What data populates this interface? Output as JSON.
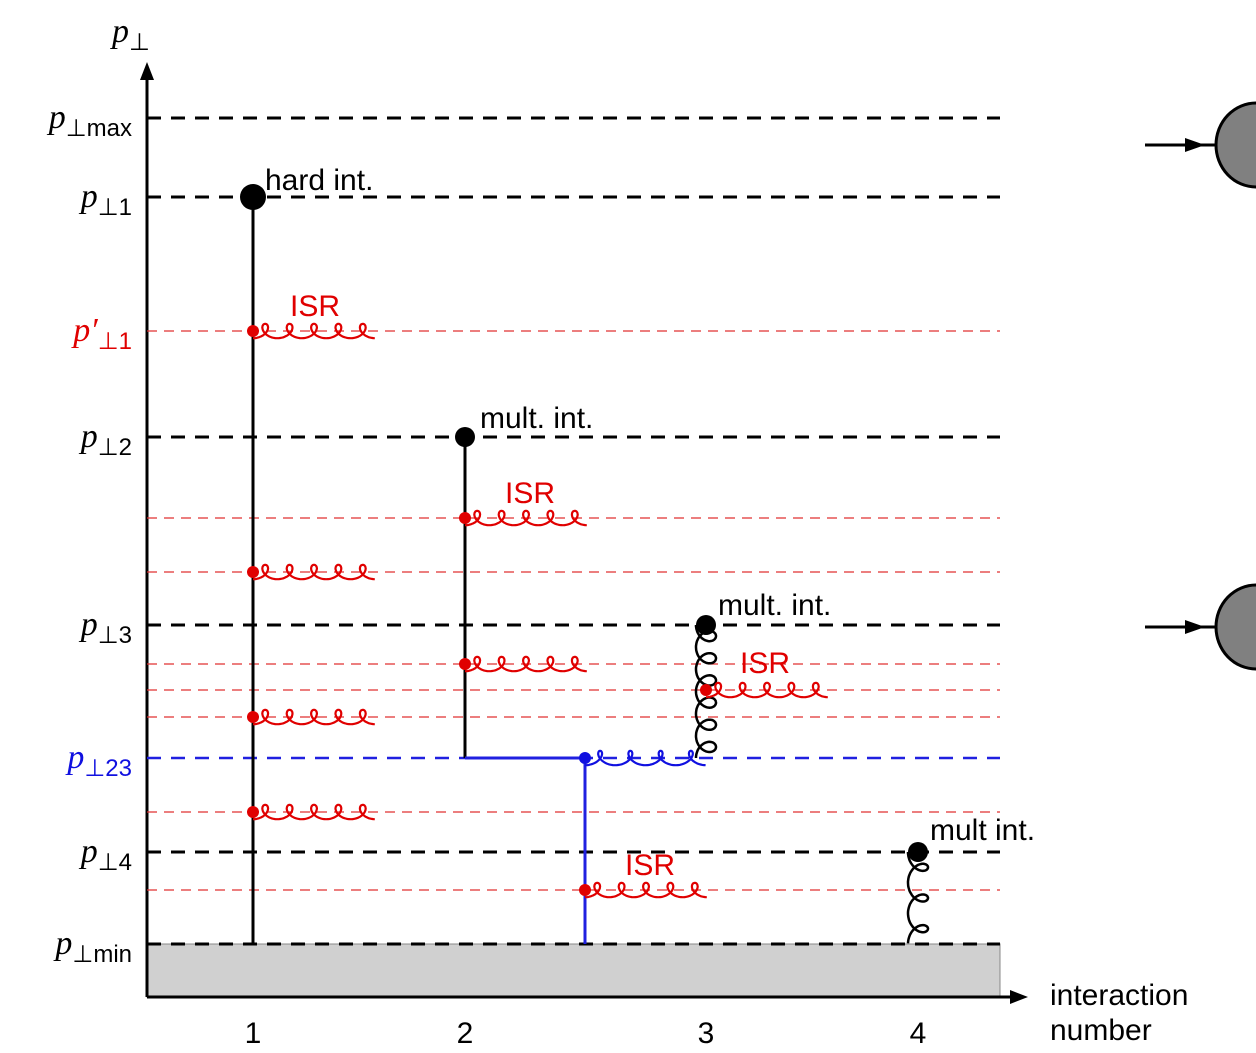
{
  "axis": {
    "y_title": {
      "main": "p",
      "sub": "⊥"
    },
    "x_title": [
      "interaction",
      "number"
    ]
  },
  "y_labels": [
    {
      "main": "p",
      "sub": "⊥max"
    },
    {
      "main": "p",
      "sub": "⊥1"
    },
    {
      "main": "p′",
      "sub": "⊥1"
    },
    {
      "main": "p",
      "sub": "⊥2"
    },
    {
      "main": "p",
      "sub": "⊥3"
    },
    {
      "main": "p",
      "sub": "⊥23"
    },
    {
      "main": "p",
      "sub": "⊥4"
    },
    {
      "main": "p",
      "sub": "⊥min"
    }
  ],
  "x_labels": [
    "1",
    "2",
    "3",
    "4"
  ],
  "annotations": [
    "hard int.",
    "mult. int.",
    "mult. int.",
    "mult int."
  ],
  "isr_labels": [
    "ISR",
    "ISR",
    "ISR",
    "ISR"
  ]
}
